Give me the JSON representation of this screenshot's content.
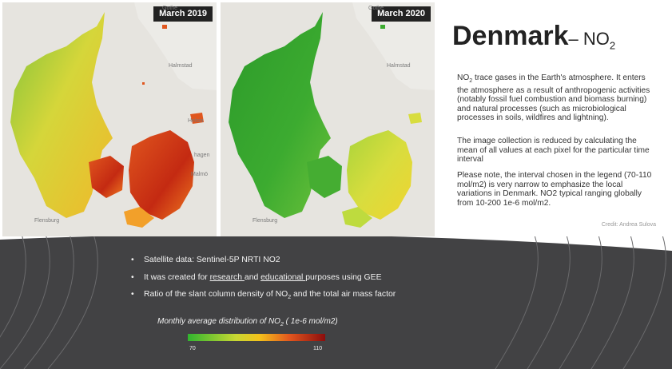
{
  "maps": [
    {
      "label": "March 2019"
    },
    {
      "label": "March 2020"
    }
  ],
  "map_places": {
    "gothenburg": "Gothe",
    "halmstad": "Halmstad",
    "helsingborg": "Helsin",
    "copenhagen": "hagen",
    "malmo": "Malmö",
    "flensburg": "Flensburg"
  },
  "title": {
    "main": "Denmark",
    "dash": "– NO",
    "sub": "2"
  },
  "paragraph1": {
    "lead": "NO",
    "lead_sub": "2",
    "text": " trace gases in the Earth's atmosphere. It enters the atmosphere as a result of anthropogenic activities (notably fossil fuel combustion and biomass burning) and natural processes (such as microbiological processes in soils, wildfires and lightning)."
  },
  "paragraph2": "The image collection is reduced by calculating the mean of all values at each pixel for the particular time interval",
  "paragraph3": "Please note, the interval chosen in the legend (70-110 mol/m2) is very narrow to emphasize the local variations in Denmark.  NO2 typical ranging globally from 10-200 1e-6 mol/m2.",
  "credit": "Credit: Andrea Sulova",
  "bullets": {
    "b1": "Satellite data: Sentinel-5P NRTI NO2",
    "b2_a": "It was created for ",
    "b2_b": "research ",
    "b2_c": "and ",
    "b2_d": "educational ",
    "b2_e": "purposes using GEE",
    "b3_a": "Ratio of the slant column density of NO",
    "b3_sub": "2",
    "b3_b": " and the total air mass factor"
  },
  "legend": {
    "title_a": "Monthly average distribution  of  NO",
    "title_sub": "2",
    "title_b": " ( 1e-6 mol/m2)",
    "min": "70",
    "max": "110",
    "colors": [
      "#31b52f",
      "#c8d733",
      "#f3c21b",
      "#e2561e",
      "#8b0d0d"
    ]
  }
}
